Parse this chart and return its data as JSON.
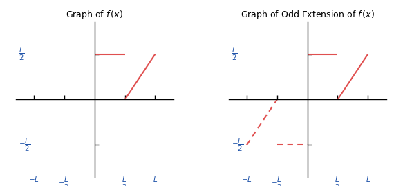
{
  "title_left": "Graph of $f\\,(x)$",
  "title_right": "Graph of Odd Extension of $f\\,(x)$",
  "line_color_solid": "#e05050",
  "line_color_dashed": "#e05050",
  "line_width": 1.5,
  "axis_color": "#000000",
  "tick_color": "#2255aa",
  "background": "#ffffff",
  "L": 1.0,
  "xlim": [
    -1.3,
    1.3
  ],
  "ylim": [
    -0.85,
    0.85
  ]
}
